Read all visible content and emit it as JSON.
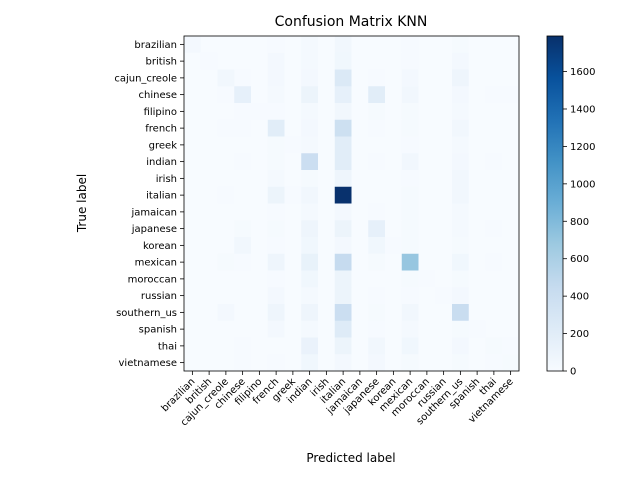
{
  "chart_data": {
    "type": "heatmap",
    "title": "Confusion Matrix KNN",
    "xlabel": "Predicted label",
    "ylabel": "True label",
    "categories": [
      "brazilian",
      "british",
      "cajun_creole",
      "chinese",
      "filipino",
      "french",
      "greek",
      "indian",
      "irish",
      "italian",
      "jamaican",
      "japanese",
      "korean",
      "mexican",
      "moroccan",
      "russian",
      "southern_us",
      "spanish",
      "thai",
      "vietnamese"
    ],
    "matrix": [
      [
        40,
        0,
        0,
        0,
        0,
        10,
        0,
        30,
        0,
        50,
        0,
        0,
        0,
        10,
        0,
        0,
        20,
        0,
        0,
        0
      ],
      [
        0,
        10,
        0,
        0,
        0,
        40,
        0,
        30,
        0,
        60,
        0,
        0,
        0,
        10,
        0,
        0,
        40,
        0,
        0,
        0
      ],
      [
        0,
        0,
        50,
        10,
        0,
        40,
        0,
        40,
        0,
        250,
        0,
        10,
        0,
        40,
        0,
        0,
        80,
        0,
        0,
        0
      ],
      [
        0,
        0,
        10,
        150,
        0,
        30,
        0,
        100,
        0,
        150,
        0,
        200,
        0,
        50,
        0,
        0,
        40,
        0,
        10,
        10
      ],
      [
        0,
        0,
        0,
        10,
        10,
        10,
        0,
        30,
        0,
        50,
        0,
        20,
        0,
        20,
        0,
        0,
        30,
        0,
        0,
        0
      ],
      [
        0,
        0,
        10,
        10,
        0,
        200,
        0,
        40,
        0,
        380,
        0,
        10,
        0,
        20,
        0,
        0,
        50,
        0,
        0,
        0
      ],
      [
        0,
        0,
        0,
        0,
        0,
        20,
        10,
        30,
        0,
        200,
        0,
        0,
        0,
        10,
        0,
        0,
        30,
        0,
        0,
        0
      ],
      [
        0,
        0,
        0,
        10,
        0,
        20,
        0,
        400,
        0,
        200,
        0,
        10,
        0,
        50,
        0,
        0,
        40,
        0,
        10,
        0
      ],
      [
        0,
        0,
        0,
        0,
        0,
        30,
        0,
        20,
        0,
        80,
        0,
        0,
        0,
        10,
        0,
        0,
        50,
        0,
        0,
        0
      ],
      [
        0,
        0,
        10,
        0,
        0,
        100,
        10,
        50,
        0,
        1780,
        0,
        0,
        0,
        20,
        0,
        0,
        50,
        0,
        0,
        0
      ],
      [
        0,
        0,
        0,
        0,
        0,
        10,
        0,
        30,
        0,
        40,
        0,
        10,
        0,
        20,
        0,
        0,
        30,
        0,
        0,
        0
      ],
      [
        0,
        0,
        0,
        20,
        0,
        20,
        0,
        80,
        0,
        100,
        0,
        150,
        0,
        20,
        0,
        0,
        30,
        0,
        10,
        0
      ],
      [
        0,
        0,
        0,
        50,
        0,
        10,
        0,
        60,
        0,
        40,
        0,
        60,
        10,
        20,
        0,
        0,
        20,
        0,
        0,
        0
      ],
      [
        0,
        0,
        20,
        10,
        0,
        80,
        0,
        130,
        0,
        450,
        0,
        20,
        0,
        700,
        0,
        0,
        60,
        0,
        10,
        0
      ],
      [
        0,
        0,
        0,
        0,
        0,
        10,
        0,
        60,
        0,
        100,
        0,
        0,
        0,
        20,
        10,
        0,
        20,
        0,
        0,
        0
      ],
      [
        0,
        0,
        0,
        0,
        0,
        40,
        0,
        30,
        0,
        100,
        0,
        10,
        0,
        10,
        0,
        10,
        40,
        0,
        0,
        0
      ],
      [
        0,
        0,
        40,
        0,
        0,
        80,
        0,
        80,
        0,
        400,
        0,
        20,
        0,
        50,
        0,
        0,
        420,
        0,
        0,
        0
      ],
      [
        0,
        0,
        0,
        0,
        0,
        40,
        0,
        30,
        0,
        220,
        0,
        10,
        0,
        30,
        0,
        0,
        20,
        10,
        0,
        0
      ],
      [
        0,
        0,
        0,
        10,
        0,
        0,
        0,
        120,
        0,
        100,
        0,
        50,
        0,
        60,
        0,
        0,
        40,
        0,
        20,
        10
      ],
      [
        0,
        0,
        0,
        10,
        0,
        10,
        0,
        60,
        0,
        40,
        0,
        40,
        0,
        20,
        0,
        0,
        20,
        0,
        10,
        20
      ]
    ],
    "colorbar": {
      "min": 0,
      "max": 1790,
      "ticks": [
        0,
        200,
        400,
        600,
        800,
        1000,
        1200,
        1400,
        1600
      ]
    },
    "colormap": "Blues",
    "colors": {
      "low": "#f7fbff",
      "high": "#08306b"
    }
  }
}
